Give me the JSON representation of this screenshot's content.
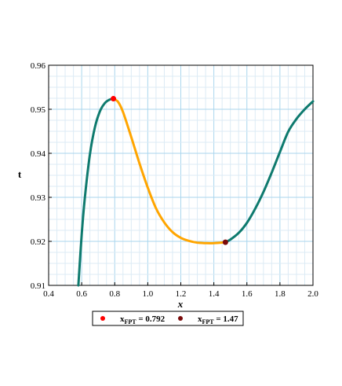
{
  "chart_data": {
    "type": "line",
    "xlabel": "x",
    "ylabel": "t",
    "xlim": [
      0.4,
      2.0
    ],
    "ylim": [
      0.91,
      0.96
    ],
    "x_ticks": [
      "0.4",
      "0.6",
      "0.8",
      "1.0",
      "1.2",
      "1.4",
      "1.6",
      "1.8",
      "2.0"
    ],
    "y_ticks": [
      "0.91",
      "0.92",
      "0.93",
      "0.94",
      "0.95",
      "0.96"
    ],
    "grid": true,
    "legend_position": "bottom",
    "series": [
      {
        "color": "#0e7a6e",
        "points": [
          [
            0.58,
            0.91
          ],
          [
            0.6,
            0.9215
          ],
          [
            0.62,
            0.9302
          ],
          [
            0.65,
            0.9398
          ],
          [
            0.68,
            0.9459
          ],
          [
            0.71,
            0.9495
          ],
          [
            0.74,
            0.9514
          ],
          [
            0.77,
            0.9522
          ],
          [
            0.792,
            0.9524
          ]
        ]
      },
      {
        "color": "#ffa500",
        "points": [
          [
            0.792,
            0.9524
          ],
          [
            0.82,
            0.9517
          ],
          [
            0.85,
            0.9494
          ],
          [
            0.9,
            0.9437
          ],
          [
            0.95,
            0.9377
          ],
          [
            1.0,
            0.9322
          ],
          [
            1.05,
            0.9275
          ],
          [
            1.1,
            0.9243
          ],
          [
            1.15,
            0.9221
          ],
          [
            1.2,
            0.9208
          ],
          [
            1.25,
            0.9201
          ],
          [
            1.3,
            0.9197
          ],
          [
            1.35,
            0.9196
          ],
          [
            1.4,
            0.9196
          ],
          [
            1.47,
            0.9198
          ]
        ]
      },
      {
        "color": "#0e7a6e",
        "points": [
          [
            1.47,
            0.9198
          ],
          [
            1.5,
            0.9204
          ],
          [
            1.55,
            0.9219
          ],
          [
            1.6,
            0.9242
          ],
          [
            1.65,
            0.9274
          ],
          [
            1.7,
            0.9312
          ],
          [
            1.75,
            0.9356
          ],
          [
            1.8,
            0.9403
          ],
          [
            1.85,
            0.9449
          ],
          [
            1.9,
            0.9478
          ],
          [
            1.95,
            0.95
          ],
          [
            2.0,
            0.9518
          ]
        ]
      }
    ],
    "markers": [
      {
        "label": "xFPT = 0.792",
        "x": 0.792,
        "y": 0.9524,
        "color": "#ff0000"
      },
      {
        "label": "xFPT = 1.47",
        "x": 1.47,
        "y": 0.9198,
        "color": "#7a0a0a"
      }
    ],
    "legend": [
      {
        "prefix": "x",
        "sub": "FPT",
        "suffix": " = 0.792",
        "color": "#ff0000"
      },
      {
        "prefix": "x",
        "sub": "FPT",
        "suffix": " = 1.47",
        "color": "#7a0a0a"
      }
    ]
  }
}
